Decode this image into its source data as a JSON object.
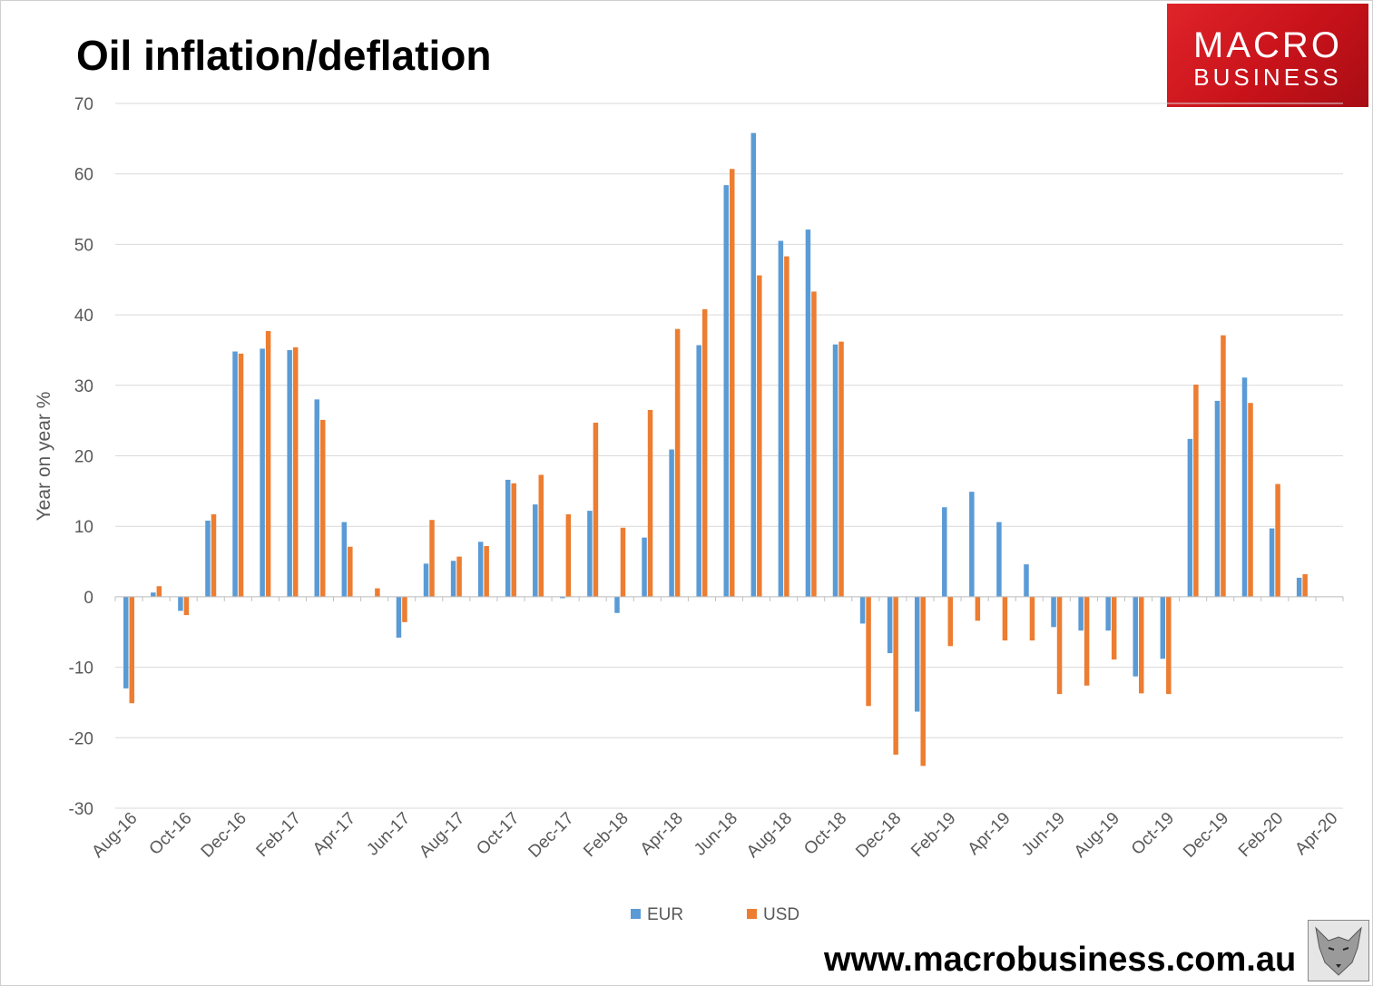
{
  "title": "Oil inflation/deflation",
  "logo": {
    "line1": "MACRO",
    "line2": "BUSINESS"
  },
  "footer_url": "www.macrobusiness.com.au",
  "colors": {
    "eur": "#5b9bd5",
    "usd": "#ed7d31",
    "grid": "#d9d9d9",
    "axis_text": "#595959"
  },
  "chart_data": {
    "type": "bar",
    "title": "Oil inflation/deflation",
    "ylabel": "Year on year %",
    "xlabel": "",
    "ylim": [
      -30,
      70
    ],
    "yticks": [
      70,
      60,
      50,
      40,
      30,
      20,
      10,
      0,
      -10,
      -20,
      -30
    ],
    "categories": [
      "Aug-16",
      "Sep-16",
      "Oct-16",
      "Nov-16",
      "Dec-16",
      "Jan-17",
      "Feb-17",
      "Mar-17",
      "Apr-17",
      "May-17",
      "Jun-17",
      "Jul-17",
      "Aug-17",
      "Sep-17",
      "Oct-17",
      "Nov-17",
      "Dec-17",
      "Jan-18",
      "Feb-18",
      "Mar-18",
      "Apr-18",
      "May-18",
      "Jun-18",
      "Jul-18",
      "Aug-18",
      "Sep-18",
      "Oct-18",
      "Nov-18",
      "Dec-18",
      "Jan-19",
      "Feb-19",
      "Mar-19",
      "Apr-19",
      "May-19",
      "Jun-19",
      "Jul-19",
      "Aug-19",
      "Sep-19",
      "Oct-19",
      "Nov-19",
      "Dec-19",
      "Jan-20",
      "Feb-20",
      "Mar-20",
      "Apr-20"
    ],
    "x_tick_labels": [
      "Aug-16",
      "Oct-16",
      "Dec-16",
      "Feb-17",
      "Apr-17",
      "Jun-17",
      "Aug-17",
      "Oct-17",
      "Dec-17",
      "Feb-18",
      "Apr-18",
      "Jun-18",
      "Aug-18",
      "Oct-18",
      "Dec-18",
      "Feb-19",
      "Apr-19",
      "Jun-19",
      "Aug-19",
      "Oct-19",
      "Dec-19",
      "Feb-20",
      "Apr-20"
    ],
    "series": [
      {
        "name": "EUR",
        "values": [
          -13,
          0.6,
          -2,
          10.8,
          34.8,
          35.2,
          35,
          28,
          10.6,
          0,
          -5.8,
          4.7,
          5.1,
          7.8,
          16.6,
          13.1,
          -0.2,
          12.2,
          -2.3,
          8.4,
          20.9,
          35.7,
          58.4,
          65.8,
          50.5,
          52.1,
          35.8,
          -3.8,
          -8,
          -16.3,
          12.7,
          14.9,
          10.6,
          4.6,
          -4.3,
          -4.8,
          -4.8,
          -11.3,
          -8.8,
          22.4,
          27.8,
          31.1,
          9.7,
          2.7,
          0
        ]
      },
      {
        "name": "USD",
        "values": [
          -15.1,
          1.5,
          -2.6,
          11.7,
          34.5,
          37.7,
          35.4,
          25.1,
          7.1,
          1.2,
          -3.6,
          10.9,
          5.7,
          7.2,
          16.1,
          17.3,
          11.7,
          24.7,
          9.8,
          26.5,
          38,
          40.8,
          60.7,
          45.6,
          48.3,
          43.3,
          36.2,
          -15.5,
          -22.4,
          -24,
          -7,
          -3.4,
          -6.2,
          -6.2,
          -13.8,
          -12.6,
          -8.9,
          -13.7,
          -13.8,
          30.1,
          37.1,
          27.5,
          16,
          3.2,
          0
        ]
      }
    ],
    "legend": [
      "EUR",
      "USD"
    ],
    "legend_position": "bottom-center",
    "grid": true
  }
}
